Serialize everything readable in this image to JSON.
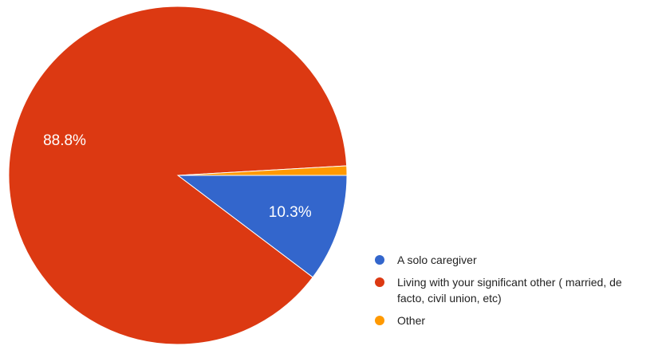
{
  "chart_data": {
    "type": "pie",
    "categories": [
      "A solo caregiver",
      "Living with your significant other ( married, de facto, civil union, etc)",
      "Other"
    ],
    "values": [
      10.3,
      88.8,
      0.9
    ],
    "value_labels": [
      "10.3%",
      "88.8%",
      null
    ],
    "colors": [
      "#3366cc",
      "#dc3912",
      "#ff9900"
    ],
    "legend": "bottom-right"
  }
}
